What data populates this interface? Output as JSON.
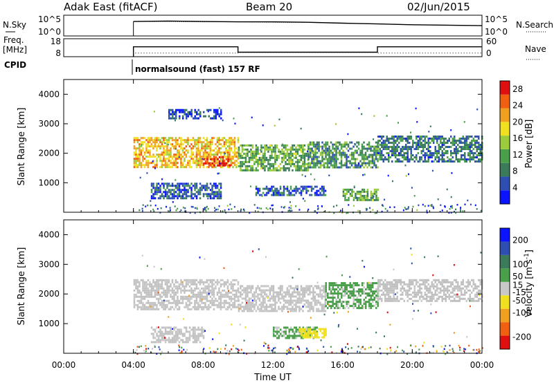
{
  "header": {
    "station": "Adak East (fitACF)",
    "beam": "Beam 20",
    "date": "02/Jun/2015"
  },
  "side_labels": {
    "nsky": "N.Sky",
    "freq_line1": "Freq.",
    "freq_line2": "[MHz]",
    "cpid": "CPID",
    "nsearch": "N.Search",
    "nave": "Nave"
  },
  "cpid_text": "normalsound (fast) 157 RF",
  "colors": {
    "power": [
      "#0a14ff",
      "#2d4fb4",
      "#3b7b5a",
      "#4aa04a",
      "#9ccc3c",
      "#f0e020",
      "#f0a020",
      "#f06010",
      "#e01010"
    ],
    "velocity": [
      "#e01010",
      "#f06010",
      "#f0a020",
      "#f0e020",
      "#c8c8c8",
      "#4aa04a",
      "#3b7b5a",
      "#2d4fb4",
      "#0a14ff"
    ],
    "ground_scatter": "#c0c0c0"
  },
  "chart_data": [
    {
      "type": "line",
      "title": "N.Sky / N.Search",
      "xlabel": "",
      "ylabel": "N.Sky",
      "y_scale": "log",
      "ylim": [
        1,
        100000
      ],
      "y_ticks_left": [
        "10^5",
        "10^0"
      ],
      "y_ticks_right": [
        "10^5",
        "10^0"
      ],
      "series": [
        {
          "name": "N.Sky",
          "x": [
            "04:00",
            "06:00",
            "08:00",
            "10:00",
            "12:00",
            "14:00",
            "16:00",
            "18:00",
            "20:00",
            "22:00",
            "24:00"
          ],
          "values": [
            3000,
            4000,
            3000,
            2500,
            2500,
            2000,
            1200,
            800,
            500,
            400,
            300
          ]
        },
        {
          "name": "N.Search",
          "x": [
            "04:00",
            "06:00",
            "08:00",
            "10:00",
            "12:00",
            "14:00",
            "16:00",
            "18:00",
            "20:00",
            "22:00",
            "24:00"
          ],
          "values": [
            3000,
            3000,
            2500,
            2500,
            2000,
            1800,
            1200,
            800,
            500,
            400,
            300
          ]
        }
      ]
    },
    {
      "type": "line",
      "title": "Freq. / Nave",
      "ylabel": "Freq. [MHz]",
      "ylim": [
        8,
        18
      ],
      "y_ticks_left": [
        "18",
        "8"
      ],
      "y_ticks_right": [
        "60",
        "0"
      ],
      "y2lim": [
        0,
        60
      ],
      "series": [
        {
          "name": "Freq.",
          "segments": [
            {
              "from": "04:00",
              "to": "10:00",
              "value": 13.5
            },
            {
              "from": "10:00",
              "to": "18:00",
              "value": 10.5
            },
            {
              "from": "18:00",
              "to": "24:00",
              "value": 13.5
            }
          ]
        },
        {
          "name": "Nave",
          "segments": [
            {
              "from": "04:00",
              "to": "10:00",
              "value": 12
            },
            {
              "from": "10:00",
              "to": "18:00",
              "value": 14
            },
            {
              "from": "18:00",
              "to": "24:00",
              "value": 12
            }
          ]
        }
      ]
    },
    {
      "type": "heatmap",
      "title": "Power",
      "xlabel": "",
      "ylabel": "Slant Range [km]",
      "ylim": [
        0,
        4500
      ],
      "y_ticks": [
        1000,
        2000,
        3000,
        4000
      ],
      "xlim": [
        "00:00",
        "24:00"
      ],
      "colorbar": {
        "label": "Power [dB]",
        "ticks": [
          4,
          8,
          12,
          16,
          20,
          24,
          28
        ],
        "range": [
          0,
          30
        ]
      },
      "regions": [
        {
          "t0": "04:00",
          "t1": "10:00",
          "r0": 1500,
          "r1": 2550,
          "value": 20
        },
        {
          "t0": "08:00",
          "t1": "09:30",
          "r0": 1550,
          "r1": 1900,
          "value": 28
        },
        {
          "t0": "10:00",
          "t1": "14:00",
          "r0": 1400,
          "r1": 2300,
          "value": 12
        },
        {
          "t0": "14:00",
          "t1": "18:00",
          "r0": 1500,
          "r1": 2400,
          "value": 10
        },
        {
          "t0": "18:00",
          "t1": "24:00",
          "r0": 1700,
          "r1": 2600,
          "value": 8
        },
        {
          "t0": "05:00",
          "t1": "09:00",
          "r0": 500,
          "r1": 1000,
          "value": 6
        },
        {
          "t0": "11:00",
          "t1": "15:00",
          "r0": 550,
          "r1": 900,
          "value": 6
        },
        {
          "t0": "16:00",
          "t1": "18:00",
          "r0": 400,
          "r1": 800,
          "value": 12
        },
        {
          "t0": "06:00",
          "t1": "09:00",
          "r0": 3200,
          "r1": 3500,
          "value": 4
        }
      ]
    },
    {
      "type": "heatmap",
      "title": "Velocity",
      "xlabel": "Time UT",
      "ylabel": "Slant Range [km]",
      "ylim": [
        0,
        4500
      ],
      "y_ticks": [
        1000,
        2000,
        3000,
        4000
      ],
      "xlim": [
        "00:00",
        "24:00"
      ],
      "x_ticks": [
        "00:00",
        "04:00",
        "08:00",
        "12:00",
        "16:00",
        "20:00",
        "00:00"
      ],
      "colorbar": {
        "label": "Velocity [m s^-1]",
        "ticks": [
          -200,
          -100,
          -50,
          -15,
          15,
          50,
          100,
          200
        ],
        "range": [
          -250,
          250
        ]
      },
      "regions": [
        {
          "t0": "04:00",
          "t1": "10:00",
          "r0": 1500,
          "r1": 2500,
          "value": 0
        },
        {
          "t0": "10:00",
          "t1": "15:00",
          "r0": 1400,
          "r1": 2300,
          "value": 0
        },
        {
          "t0": "15:00",
          "t1": "18:00",
          "r0": 1500,
          "r1": 2400,
          "value": 40
        },
        {
          "t0": "18:00",
          "t1": "24:00",
          "r0": 1800,
          "r1": 2500,
          "value": 0
        },
        {
          "t0": "12:00",
          "t1": "14:30",
          "r0": 550,
          "r1": 900,
          "value": 40
        },
        {
          "t0": "13:30",
          "t1": "15:00",
          "r0": 550,
          "r1": 850,
          "value": -60
        },
        {
          "t0": "05:00",
          "t1": "08:00",
          "r0": 400,
          "r1": 900,
          "value": 0
        }
      ]
    }
  ]
}
